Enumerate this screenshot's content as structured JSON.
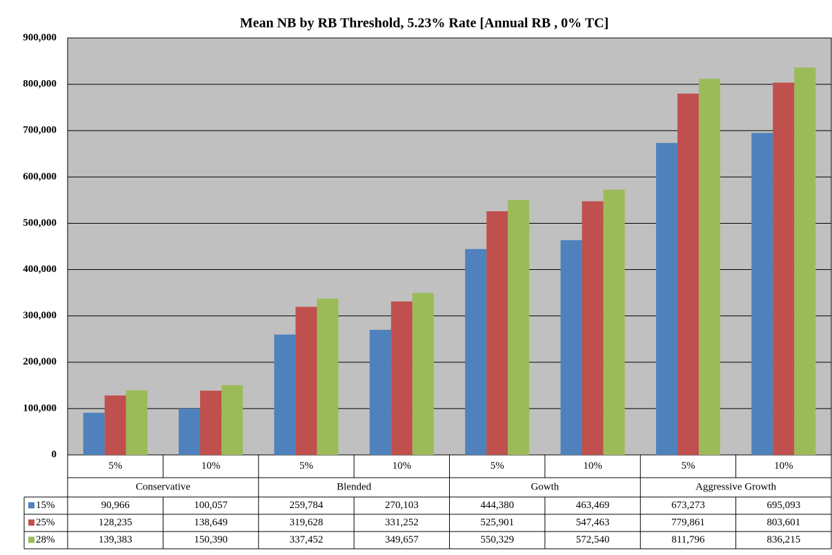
{
  "chart_data": {
    "type": "bar",
    "title": "Mean NB by  RB Threshold, 5.23% Rate [Annual RB ,  0% TC]",
    "categories": [
      "5%",
      "10%",
      "5%",
      "10%",
      "5%",
      "10%",
      "5%",
      "10%"
    ],
    "groups": [
      "Conservative",
      "Blended",
      "Gowth",
      "Aggressive Growth"
    ],
    "series": [
      {
        "name": "15%",
        "color": "#4f81bd",
        "values": [
          90966,
          100057,
          259784,
          270103,
          444380,
          463469,
          673273,
          695093
        ],
        "value_labels": [
          "90,966",
          "100,057",
          "259,784",
          "270,103",
          "444,380",
          "463,469",
          "673,273",
          "695,093"
        ]
      },
      {
        "name": "25%",
        "color": "#c0504d",
        "values": [
          128235,
          138649,
          319628,
          331252,
          525901,
          547463,
          779861,
          803601
        ],
        "value_labels": [
          "128,235",
          "138,649",
          "319,628",
          "331,252",
          "525,901",
          "547,463",
          "779,861",
          "803,601"
        ]
      },
      {
        "name": "28%",
        "color": "#9bbb59",
        "values": [
          139383,
          150390,
          337452,
          349657,
          550329,
          572540,
          811796,
          836215
        ],
        "value_labels": [
          "139,383",
          "150,390",
          "337,452",
          "349,657",
          "550,329",
          "572,540",
          "811,796",
          "836,215"
        ]
      }
    ],
    "ylim": [
      0,
      900000
    ],
    "yticks": [
      0,
      {
        "value": 100000,
        "label": "100,000"
      },
      {
        "value": 200000,
        "label": "200,000"
      },
      {
        "value": 300000,
        "label": "300,000"
      },
      {
        "value": 400000,
        "label": "400,000"
      },
      {
        "value": 500000,
        "label": "500,000"
      },
      {
        "value": 600000,
        "label": "600,000"
      },
      {
        "value": 700000,
        "label": "700,000"
      },
      {
        "value": 800000,
        "label": "800,000"
      },
      {
        "value": 900000,
        "label": "900,000"
      }
    ],
    "grid": true,
    "plot_background": "#c0c0c0"
  }
}
